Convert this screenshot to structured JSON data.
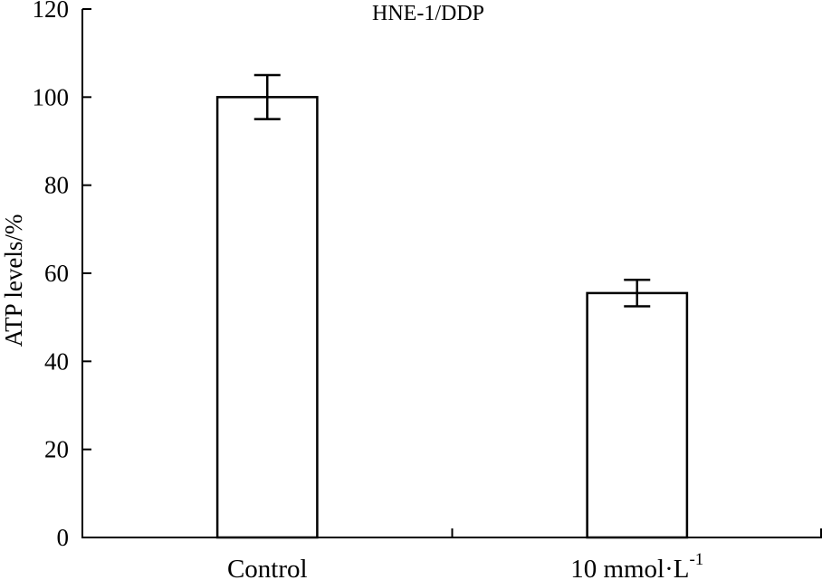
{
  "chart_data": {
    "type": "bar",
    "title": "HNE-1/DDP",
    "xlabel": "",
    "ylabel": "ATP levels/%",
    "categories": [
      {
        "label": "Control",
        "sup": ""
      },
      {
        "label": "10 mmol·L",
        "sup": "-1"
      }
    ],
    "values": [
      100,
      55.5
    ],
    "errors": [
      5,
      3
    ],
    "ylim": [
      0,
      120
    ],
    "yticks": [
      "0",
      "20",
      "40",
      "60",
      "80",
      "100",
      "120"
    ],
    "grid": false,
    "legend": "none",
    "bar_fill": "#ffffff",
    "bar_stroke": "#000000"
  }
}
